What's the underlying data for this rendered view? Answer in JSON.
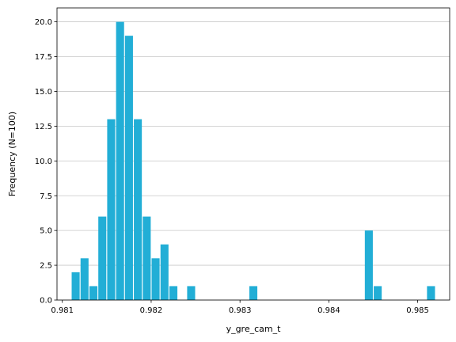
{
  "chart_data": {
    "type": "bar",
    "xlabel": "y_gre_cam_t",
    "ylabel": "Frequency (N=100)",
    "xlim": [
      0.98094,
      0.98536
    ],
    "ylim": [
      0,
      21
    ],
    "grid": "horizontal",
    "bar_color": "#22aed6",
    "bin_width": 0.0001,
    "x_ticks": [
      {
        "value": 0.981,
        "label": "0.981"
      },
      {
        "value": 0.982,
        "label": "0.982"
      },
      {
        "value": 0.983,
        "label": "0.983"
      },
      {
        "value": 0.984,
        "label": "0.984"
      },
      {
        "value": 0.985,
        "label": "0.985"
      }
    ],
    "y_ticks": [
      {
        "value": 0,
        "label": "0.0"
      },
      {
        "value": 2.5,
        "label": "2.5"
      },
      {
        "value": 5,
        "label": "5.0"
      },
      {
        "value": 7.5,
        "label": "7.5"
      },
      {
        "value": 10,
        "label": "10.0"
      },
      {
        "value": 12.5,
        "label": "12.5"
      },
      {
        "value": 15,
        "label": "15.0"
      },
      {
        "value": 17.5,
        "label": "17.5"
      },
      {
        "value": 20,
        "label": "20.0"
      }
    ],
    "bins": [
      {
        "x": 0.98115,
        "count": 2
      },
      {
        "x": 0.98125,
        "count": 3
      },
      {
        "x": 0.98135,
        "count": 1
      },
      {
        "x": 0.98145,
        "count": 6
      },
      {
        "x": 0.98155,
        "count": 13
      },
      {
        "x": 0.98165,
        "count": 20
      },
      {
        "x": 0.98175,
        "count": 19
      },
      {
        "x": 0.98185,
        "count": 13
      },
      {
        "x": 0.98195,
        "count": 6
      },
      {
        "x": 0.98205,
        "count": 3
      },
      {
        "x": 0.98215,
        "count": 4
      },
      {
        "x": 0.98225,
        "count": 1
      },
      {
        "x": 0.98245,
        "count": 1
      },
      {
        "x": 0.98315,
        "count": 1
      },
      {
        "x": 0.98445,
        "count": 5
      },
      {
        "x": 0.98455,
        "count": 1
      },
      {
        "x": 0.98515,
        "count": 1
      }
    ]
  }
}
